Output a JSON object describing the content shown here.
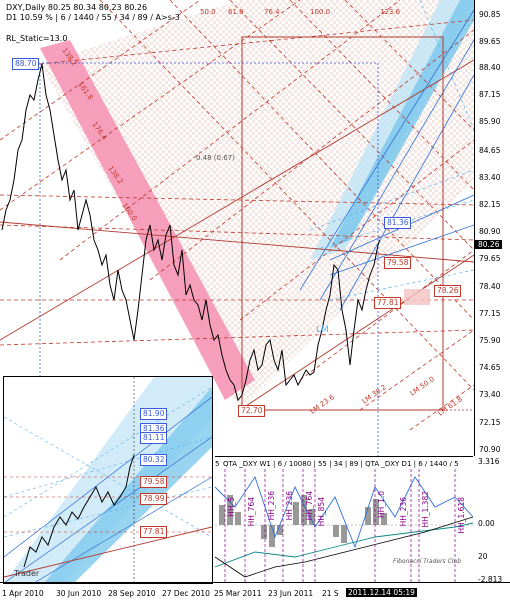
{
  "header": {
    "line1": "DXY,Daily  80.25 80.34 80.23 80.26",
    "line2": "D1  10.59 % | 6 / 1440 / 55 / 34 / 89 / A>s-3",
    "rl_static": "RL_Static=13.0"
  },
  "colors": {
    "pink_channel": "#f48fb1",
    "blue_channel": "#7ec8ec",
    "fib_dashed": "#c0392b",
    "box_outline": "#b03a2e",
    "blue_label_bg": "#3a5bdc",
    "red_label_bg": "#d9433a"
  },
  "price_labels": {
    "high": "88.70",
    "low": "72.70",
    "level_8136": "81.36",
    "level_7958": "79.58",
    "level_7781": "77.81",
    "level_7826": "78.26",
    "last_price": "80.26"
  },
  "chart_annotations": {
    "ratio_text": "0.48 (0.67)",
    "lm_label": "LM",
    "lm_bottom_labels": [
      "LM 23.6",
      "LM 38.2",
      "LM 50.0",
      "LM 61.8"
    ],
    "fan_labels": [
      "50.0",
      "61.8",
      "76.4",
      "100.0",
      "123.6"
    ],
    "left_fan_labels": [
      "138.2",
      "161.8",
      "176.4",
      "138.2",
      "100.0"
    ]
  },
  "right_axis": {
    "ticks": [
      "90.85",
      "89.65",
      "88.40",
      "87.15",
      "85.90",
      "84.65",
      "83.40",
      "82.15",
      "80.90",
      "79.65",
      "78.40",
      "77.15",
      "75.90",
      "74.65",
      "73.40",
      "72.15",
      "70.90"
    ],
    "current": "80.26"
  },
  "time_axis": {
    "ticks": [
      "1 Apr 2010",
      "30 Jun 2010",
      "28 Sep 2010",
      "27 Dec 2010",
      "25 Mar 2011",
      "23 Jun 2011",
      "21 S"
    ],
    "cursor_label": "2011.12.14 05:19"
  },
  "inset": {
    "labels": [
      "81.90",
      "81.36",
      "81.11",
      "80.32",
      "79.58",
      "78.99",
      "77.81"
    ],
    "watermark": "Trader"
  },
  "indicator": {
    "title": "QTA _DXY W1 | 6 / 10080 | 55 | 34 | 89 | QTA _DXY D1 | 6 / 1440 / 5",
    "scale": [
      "3.316",
      "0.00",
      "-2.813"
    ],
    "scale_mid": "20",
    "left_mark": "5",
    "vertical_labels": [
      "HH_5",
      "HH_764",
      "HH_236",
      "HH_236",
      "HH_764",
      "HH_854",
      "HH_1.0",
      "HH_236",
      "HH_1.382",
      "HH_1.618"
    ],
    "watermark": "Fibonacci Traders Club"
  }
}
